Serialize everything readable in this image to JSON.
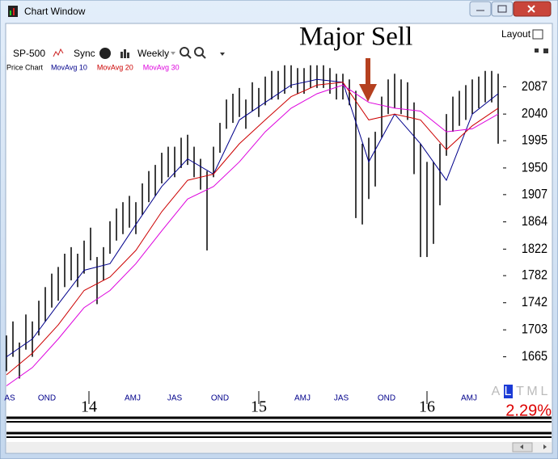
{
  "ui": {
    "window_title": "Chart Window",
    "symbol": "SP-500",
    "sync": "Sync",
    "period": "Weekly",
    "layout": "Layout",
    "tabs": [
      "A",
      "L",
      "T",
      "M",
      "L"
    ],
    "active_tab": 1,
    "change": "2.29%"
  },
  "chart_data": {
    "type": "range-bar",
    "title": "Price Chart",
    "annotation": "Major Sell",
    "log_scale": true,
    "color": "#000000",
    "x": [
      0,
      2,
      4,
      6,
      8,
      10,
      12,
      14,
      16,
      18,
      20,
      22,
      24,
      26,
      28,
      30,
      32,
      34,
      36,
      38,
      40,
      42,
      44,
      46,
      48,
      50,
      52,
      54,
      56,
      58,
      60,
      62,
      64,
      66,
      68,
      70,
      72,
      74,
      76,
      78,
      80,
      82,
      84,
      86,
      88,
      90,
      92,
      94,
      96,
      98,
      100,
      102,
      104,
      106,
      108,
      110,
      112,
      114,
      116,
      118,
      120,
      122,
      124,
      126,
      128,
      130,
      132,
      134,
      136,
      138,
      140,
      142,
      144,
      146,
      148,
      150,
      152
    ],
    "high": [
      1695,
      1715,
      1685,
      1725,
      1715,
      1745,
      1765,
      1785,
      1795,
      1815,
      1825,
      1815,
      1835,
      1855,
      1810,
      1825,
      1865,
      1885,
      1895,
      1905,
      1895,
      1925,
      1945,
      1955,
      1975,
      1985,
      1985,
      2000,
      2005,
      1985,
      1965,
      1945,
      1985,
      2025,
      2065,
      2075,
      2085,
      2065,
      2095,
      2085,
      2105,
      2115,
      2115,
      2125,
      2125,
      2120,
      2120,
      2125,
      2125,
      2125,
      2120,
      2110,
      2110,
      2100,
      2080,
      1990,
      2000,
      2010,
      2070,
      2100,
      2110,
      2100,
      2095,
      2060,
      1990,
      1960,
      1960,
      1990,
      2040,
      2070,
      2080,
      2090,
      2100,
      2105,
      2115,
      2115,
      2110
    ],
    "low": [
      1645,
      1665,
      1635,
      1675,
      1665,
      1695,
      1715,
      1735,
      1745,
      1765,
      1775,
      1765,
      1785,
      1805,
      1740,
      1775,
      1815,
      1835,
      1845,
      1855,
      1845,
      1875,
      1895,
      1905,
      1925,
      1935,
      1935,
      1950,
      1955,
      1935,
      1915,
      1820,
      1935,
      1975,
      2015,
      2025,
      2035,
      2015,
      2045,
      2035,
      2055,
      2065,
      2065,
      2075,
      2085,
      2075,
      2075,
      2085,
      2085,
      2085,
      2075,
      2065,
      2065,
      2055,
      1870,
      1860,
      1900,
      1920,
      2000,
      2040,
      2050,
      2040,
      2030,
      1940,
      1810,
      1810,
      1830,
      1890,
      1970,
      2010,
      2020,
      2030,
      2040,
      2050,
      2060,
      2060,
      1990
    ],
    "series": [
      {
        "name": "MovAvg 10",
        "color": "#00008b",
        "x": [
          0,
          8,
          16,
          24,
          32,
          40,
          48,
          56,
          64,
          72,
          80,
          88,
          96,
          104,
          112,
          120,
          128,
          136,
          144,
          152
        ],
        "values": [
          1665,
          1690,
          1740,
          1790,
          1800,
          1860,
          1920,
          1965,
          1940,
          2030,
          2060,
          2090,
          2100,
          2095,
          1960,
          2040,
          1990,
          1930,
          2040,
          2075
        ]
      },
      {
        "name": "MovAvg 20",
        "color": "#cc0000",
        "x": [
          0,
          8,
          16,
          24,
          32,
          40,
          48,
          56,
          64,
          72,
          80,
          88,
          96,
          104,
          112,
          120,
          128,
          136,
          144,
          152
        ],
        "values": [
          1640,
          1670,
          1710,
          1760,
          1780,
          1820,
          1880,
          1930,
          1940,
          1990,
          2030,
          2070,
          2090,
          2095,
          2030,
          2040,
          2030,
          1980,
          2020,
          2050
        ]
      },
      {
        "name": "MovAvg 30",
        "color": "#dd00dd",
        "x": [
          0,
          8,
          16,
          24,
          32,
          40,
          48,
          56,
          64,
          72,
          80,
          88,
          96,
          104,
          112,
          120,
          128,
          136,
          144,
          152
        ],
        "values": [
          1625,
          1650,
          1690,
          1735,
          1760,
          1800,
          1850,
          1900,
          1920,
          1960,
          2010,
          2050,
          2075,
          2090,
          2060,
          2050,
          2045,
          2010,
          2015,
          2040
        ]
      }
    ],
    "xlim": [
      0,
      153
    ],
    "ylim": [
      1619,
      2129
    ],
    "yticks": [
      1665,
      1703,
      1742,
      1782,
      1822,
      1864,
      1907,
      1950,
      1995,
      2040,
      2087
    ],
    "xticks": [
      {
        "value": 1,
        "label": "AS"
      },
      {
        "value": 12.5,
        "label": "OND"
      },
      {
        "value": 39,
        "label": "AMJ"
      },
      {
        "value": 52,
        "label": "JAS"
      },
      {
        "value": 66,
        "label": "OND"
      },
      {
        "value": 91.5,
        "label": "AMJ"
      },
      {
        "value": 103.5,
        "label": "JAS"
      },
      {
        "value": 117.5,
        "label": "OND"
      },
      {
        "value": 143,
        "label": "AMJ"
      }
    ],
    "year_ticks": [
      {
        "value": 25.5,
        "label": "14"
      },
      {
        "value": 78,
        "label": "15"
      },
      {
        "value": 130,
        "label": "16"
      }
    ]
  }
}
